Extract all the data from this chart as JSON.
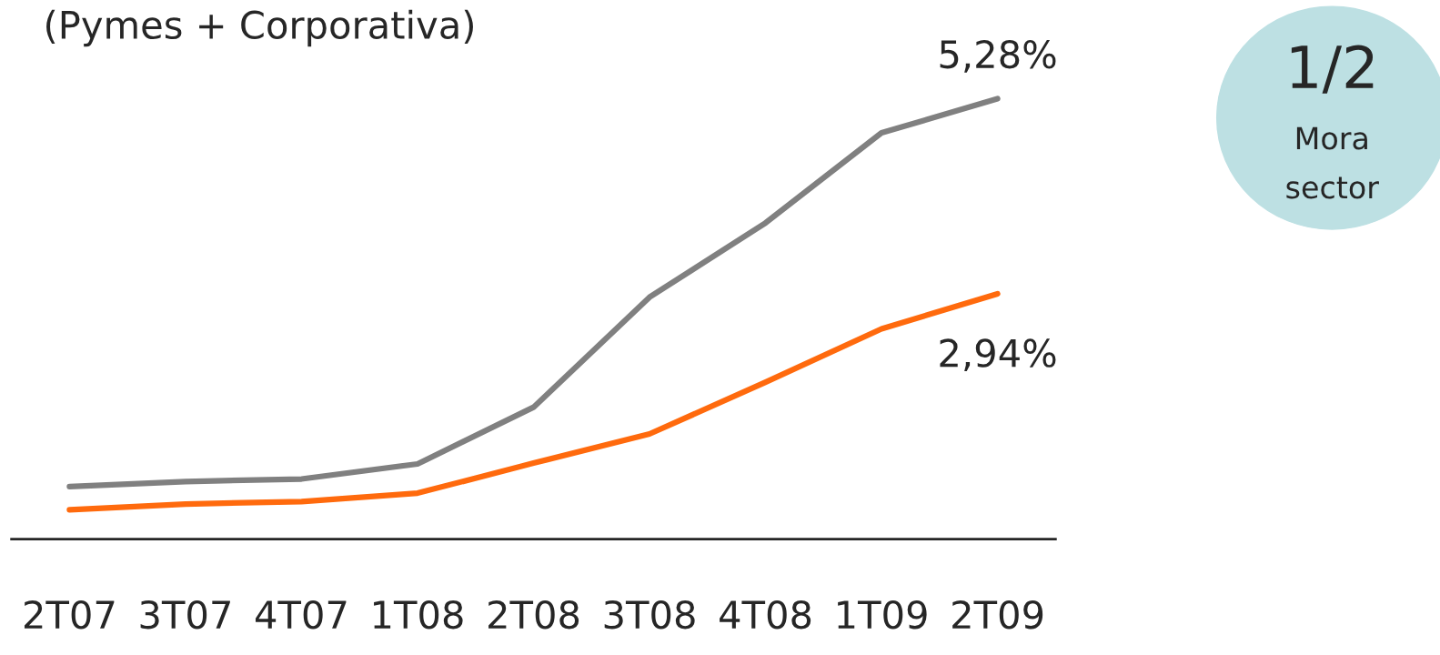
{
  "chart_data": {
    "type": "line",
    "title": "(Pymes + Corporativa)",
    "categories": [
      "2T07",
      "3T07",
      "4T07",
      "1T08",
      "2T08",
      "3T08",
      "4T08",
      "1T09",
      "2T09"
    ],
    "series": [
      {
        "color": "#808080",
        "values": [
          0.63,
          0.69,
          0.72,
          0.9,
          1.58,
          2.9,
          3.79,
          4.87,
          5.28
        ],
        "value_labels": [
          null,
          null,
          null,
          null,
          null,
          null,
          null,
          null,
          "5,28%"
        ]
      },
      {
        "color": "#ff6a0d",
        "values": [
          0.35,
          0.42,
          0.45,
          0.55,
          0.91,
          1.26,
          1.88,
          2.52,
          2.94
        ],
        "value_labels": [
          null,
          null,
          null,
          null,
          null,
          null,
          null,
          null,
          "2,94%"
        ]
      }
    ],
    "annotations": [
      "1/2",
      "Mora",
      "sector"
    ],
    "grid": false,
    "marker": "none",
    "line_style": "solid"
  }
}
